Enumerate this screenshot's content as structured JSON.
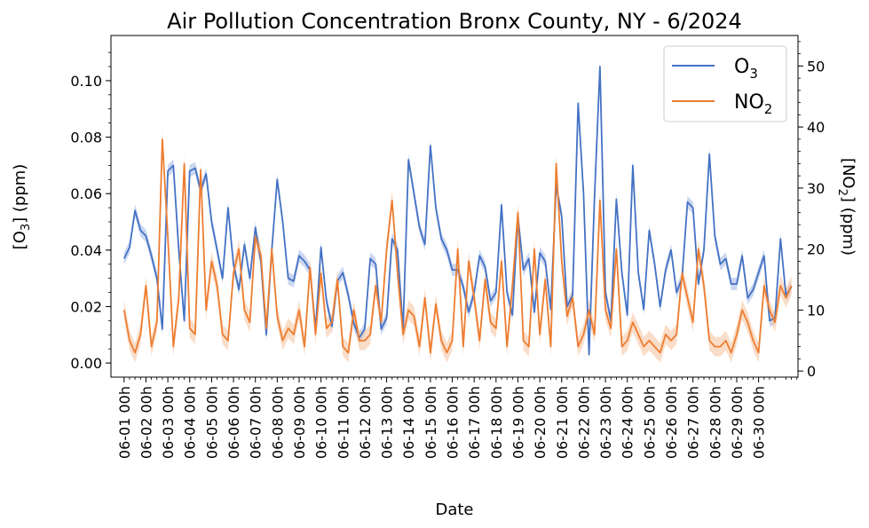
{
  "chart_data": {
    "type": "line",
    "title": "Air Pollution Concentration Bronx County, NY - 6/2024",
    "xlabel": "Date",
    "ylabel_left_main": "[O",
    "ylabel_left_sub": "3",
    "ylabel_left_tail": "] (ppm)",
    "ylabel_right_main": "[NO",
    "ylabel_right_sub": "2",
    "ylabel_right_tail": "] (ppm)",
    "x_tick_labels": [
      "06-01 00h",
      "06-02 00h",
      "06-03 00h",
      "06-04 00h",
      "06-05 00h",
      "06-06 00h",
      "06-07 00h",
      "06-08 00h",
      "06-09 00h",
      "06-10 00h",
      "06-11 00h",
      "06-12 00h",
      "06-13 00h",
      "06-14 00h",
      "06-15 00h",
      "06-16 00h",
      "06-17 00h",
      "06-18 00h",
      "06-19 00h",
      "06-20 00h",
      "06-21 00h",
      "06-22 00h",
      "06-23 00h",
      "06-24 00h",
      "06-25 00h",
      "06-26 00h",
      "06-27 00h",
      "06-28 00h",
      "06-29 00h",
      "06-30 00h"
    ],
    "y_left_ticks": [
      "0.00",
      "0.02",
      "0.04",
      "0.06",
      "0.08",
      "0.10"
    ],
    "y_left_lim": [
      -0.005,
      0.116
    ],
    "y_right_ticks": [
      "0",
      "10",
      "20",
      "30",
      "40",
      "50"
    ],
    "y_right_lim": [
      -1,
      55
    ],
    "x_range_days": [
      -0.6,
      30.8
    ],
    "legend_position": "upper right",
    "colors": {
      "o3": "#4472c4",
      "no2": "#ed7d31",
      "o3_band": "#a9bde8",
      "no2_band": "#f6c6a4"
    },
    "series": [
      {
        "name_main": "O",
        "name_sub": "3",
        "axis": "left",
        "x_day_start": 0.0,
        "x_day_step": 0.25,
        "values": [
          0.037,
          0.041,
          0.054,
          0.047,
          0.045,
          0.038,
          0.03,
          0.012,
          0.068,
          0.07,
          0.04,
          0.015,
          0.068,
          0.069,
          0.061,
          0.067,
          0.05,
          0.04,
          0.03,
          0.055,
          0.035,
          0.026,
          0.042,
          0.03,
          0.048,
          0.036,
          0.01,
          0.04,
          0.065,
          0.05,
          0.03,
          0.029,
          0.038,
          0.036,
          0.033,
          0.012,
          0.041,
          0.022,
          0.013,
          0.029,
          0.032,
          0.024,
          0.014,
          0.009,
          0.012,
          0.037,
          0.035,
          0.012,
          0.016,
          0.044,
          0.04,
          0.012,
          0.072,
          0.06,
          0.048,
          0.042,
          0.077,
          0.055,
          0.044,
          0.04,
          0.033,
          0.033,
          0.027,
          0.018,
          0.025,
          0.038,
          0.034,
          0.022,
          0.025,
          0.056,
          0.025,
          0.017,
          0.052,
          0.033,
          0.037,
          0.018,
          0.039,
          0.036,
          0.019,
          0.063,
          0.052,
          0.02,
          0.024,
          0.092,
          0.06,
          0.003,
          0.059,
          0.105,
          0.025,
          0.015,
          0.058,
          0.032,
          0.017,
          0.07,
          0.032,
          0.019,
          0.047,
          0.035,
          0.02,
          0.033,
          0.04,
          0.025,
          0.03,
          0.057,
          0.055,
          0.028,
          0.04,
          0.074,
          0.045,
          0.035,
          0.037,
          0.028,
          0.028,
          0.038,
          0.023,
          0.026,
          0.032,
          0.038,
          0.015,
          0.016,
          0.044,
          0.024,
          0.027
        ]
      },
      {
        "name_main": "NO",
        "name_sub": "2",
        "axis": "right",
        "x_day_start": 0.0,
        "x_day_step": 0.25,
        "values": [
          10,
          5,
          3,
          6,
          14,
          4,
          8,
          38,
          22,
          4,
          12,
          34,
          7,
          6,
          33,
          10,
          18,
          14,
          6,
          5,
          16,
          20,
          10,
          8,
          22,
          19,
          7,
          20,
          9,
          5,
          7,
          6,
          10,
          4,
          17,
          6,
          16,
          7,
          8,
          15,
          4,
          3,
          10,
          5,
          5,
          6,
          14,
          8,
          20,
          28,
          16,
          6,
          10,
          9,
          4,
          12,
          3,
          11,
          5,
          3,
          5,
          20,
          4,
          18,
          12,
          5,
          15,
          8,
          7,
          18,
          4,
          14,
          26,
          5,
          4,
          20,
          6,
          15,
          4,
          34,
          18,
          9,
          12,
          4,
          6,
          10,
          6,
          28,
          10,
          7,
          20,
          4,
          5,
          8,
          6,
          4,
          5,
          4,
          3,
          6,
          5,
          6,
          16,
          12,
          8,
          20,
          14,
          5,
          4,
          4,
          5,
          3,
          6,
          10,
          8,
          5,
          3,
          14,
          10,
          8,
          14,
          12,
          14
        ]
      }
    ]
  }
}
